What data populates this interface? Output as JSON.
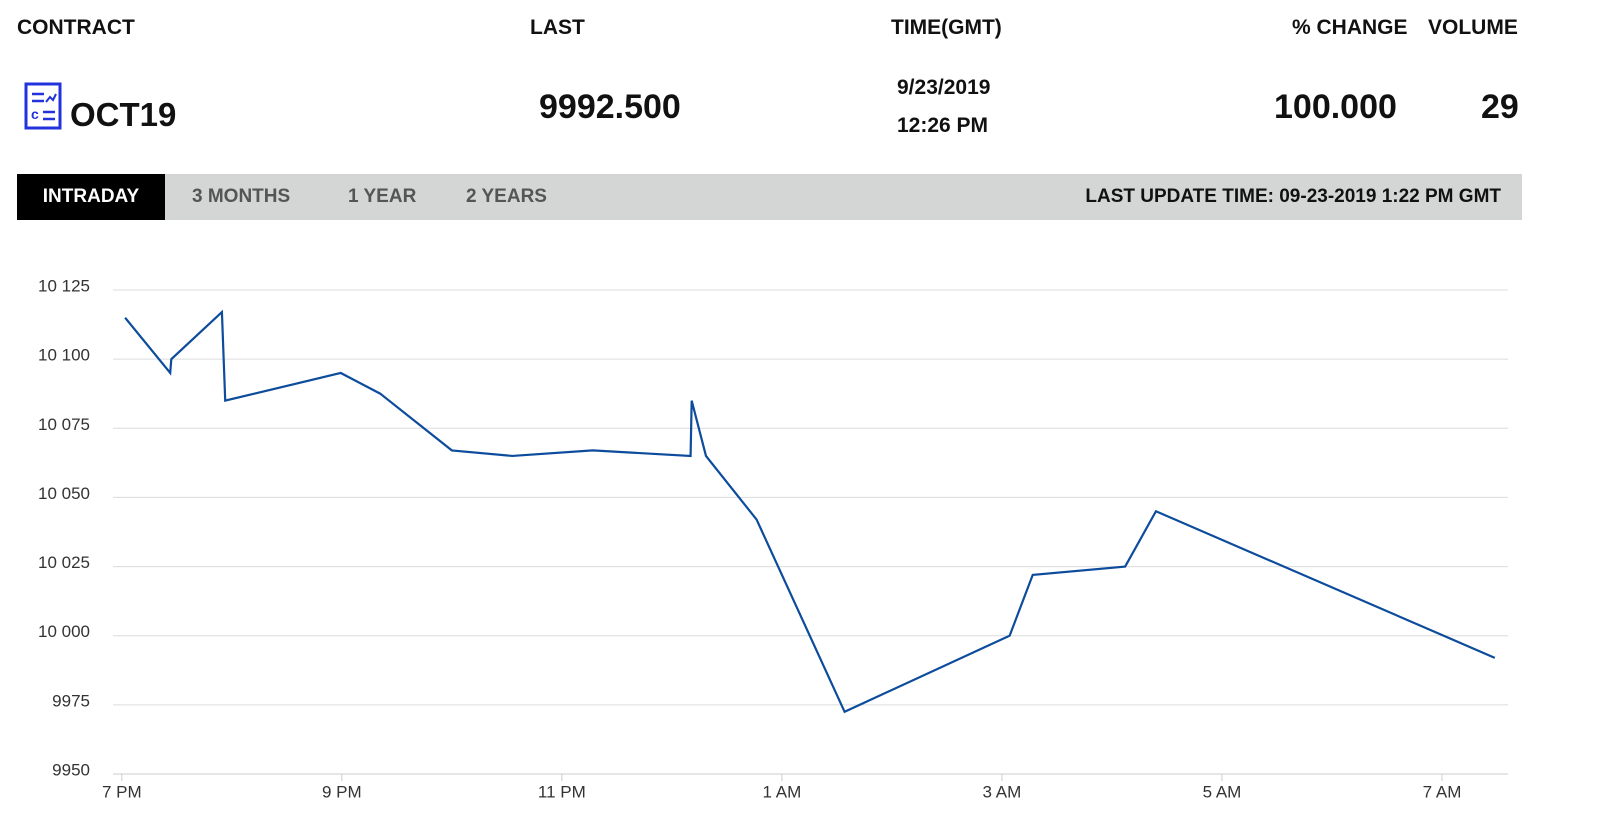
{
  "header": {
    "columns": [
      "CONTRACT",
      "LAST",
      "TIME(GMT)",
      "% CHANGE",
      "VOLUME"
    ],
    "contract": "OCT19",
    "last": "9992.500",
    "date": "9/23/2019",
    "time": "12:26 PM",
    "change": "100.000",
    "volume": "29"
  },
  "tabs": [
    "INTRADAY",
    "3 MONTHS",
    "1 YEAR",
    "2 YEARS"
  ],
  "last_update": "LAST UPDATE TIME: 09-23-2019 1:22 PM GMT",
  "chart_data": {
    "type": "line",
    "x": [
      19.03,
      19.44,
      19.45,
      19.91,
      19.94,
      20.99,
      21.35,
      22.0,
      22.55,
      23.28,
      24.17,
      24.18,
      24.31,
      24.77,
      25.57,
      27.07,
      27.28,
      28.12,
      28.4,
      31.48
    ],
    "values": [
      10115,
      10095,
      10100,
      10117,
      10085,
      10095,
      10087.5,
      10067,
      10065,
      10067,
      10065,
      10085,
      10065,
      10042,
      9972.5,
      10000,
      10022,
      10025,
      10045,
      9992
    ],
    "color": "#0d4c9c",
    "xlim": [
      18.92,
      31.6
    ],
    "xticks": [
      {
        "value": 19,
        "label": "7 PM"
      },
      {
        "value": 21,
        "label": "9 PM"
      },
      {
        "value": 23,
        "label": "11 PM"
      },
      {
        "value": 25,
        "label": "1 AM"
      },
      {
        "value": 27,
        "label": "3 AM"
      },
      {
        "value": 29,
        "label": "5 AM"
      },
      {
        "value": 31,
        "label": "7 AM"
      }
    ],
    "ylim": [
      9950,
      10125
    ],
    "yticks": [
      9950,
      9975,
      {
        "value": 10000,
        "label": "10 000"
      },
      {
        "value": 10025,
        "label": "10 025"
      },
      {
        "value": 10050,
        "label": "10 050"
      },
      {
        "value": 10075,
        "label": "10 075"
      },
      {
        "value": 10100,
        "label": "10 100"
      },
      {
        "value": 10125,
        "label": "10 125"
      }
    ],
    "grid": true
  }
}
